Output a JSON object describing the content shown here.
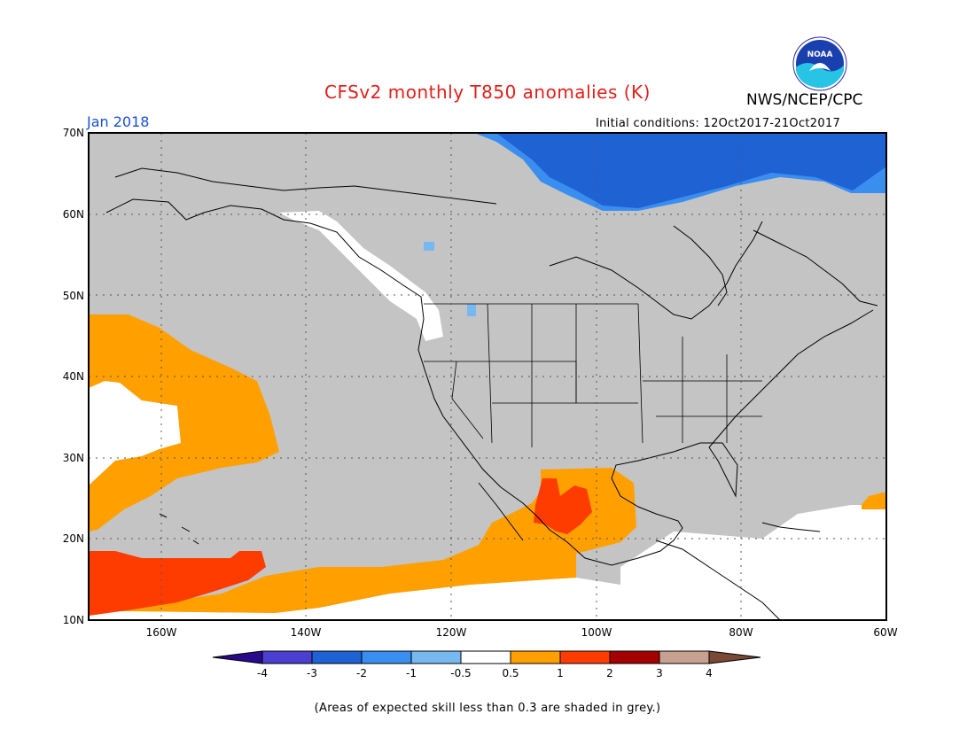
{
  "title": "CFSv2 monthly T850 anomalies (K)",
  "agency": "NWS/NCEP/CPC",
  "logo_text": "NOAA",
  "valid_month": "Jan 2018",
  "initial_conditions": "Initial conditions: 12Oct2017-21Oct2017",
  "footnote": "(Areas of expected skill less than 0.3 are shaded in grey.)",
  "map": {
    "lon_range": [
      -170,
      -60
    ],
    "lat_range": [
      10,
      70
    ],
    "lon_ticks": [
      "160W",
      "140W",
      "120W",
      "100W",
      "80W",
      "60W"
    ],
    "lat_ticks": [
      "10N",
      "20N",
      "30N",
      "40N",
      "50N",
      "60N",
      "70N"
    ],
    "grid": true,
    "no_skill_color": "#c4c4c4"
  },
  "colorbar": {
    "labels": [
      "-4",
      "-3",
      "-2",
      "-1",
      "-0.5",
      "0.5",
      "1",
      "2",
      "3",
      "4"
    ],
    "colors": [
      "#2a0a8c",
      "#4a3fcf",
      "#1e62d4",
      "#3a8ef0",
      "#78b8f0",
      "#ffffff",
      "#ffa000",
      "#ff3c00",
      "#a50000",
      "#c8a090",
      "#7a4a36"
    ]
  }
}
